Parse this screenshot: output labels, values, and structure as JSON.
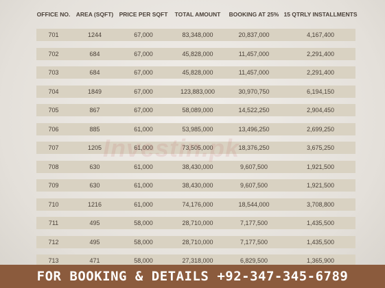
{
  "table": {
    "header": [
      "OFFICE NO.",
      "AREA (SQFT)",
      "PRICE PER SQFT",
      "TOTAL AMOUNT",
      "BOOKING AT 25%",
      "15 QTRLY INSTALLMENTS"
    ],
    "rows": [
      [
        "701",
        "1244",
        "67,000",
        "83,348,000",
        "20,837,000",
        "4,167,400"
      ],
      [
        "702",
        "684",
        "67,000",
        "45,828,000",
        "11,457,000",
        "2,291,400"
      ],
      [
        "703",
        "684",
        "67,000",
        "45,828,000",
        "11,457,000",
        "2,291,400"
      ],
      [
        "704",
        "1849",
        "67,000",
        "123,883,000",
        "30,970,750",
        "6,194,150"
      ],
      [
        "705",
        "867",
        "67,000",
        "58,089,000",
        "14,522,250",
        "2,904,450"
      ],
      [
        "706",
        "885",
        "61,000",
        "53,985,000",
        "13,496,250",
        "2,699,250"
      ],
      [
        "707",
        "1205",
        "61,000",
        "73,505,000",
        "18,376,250",
        "3,675,250"
      ],
      [
        "708",
        "630",
        "61,000",
        "38,430,000",
        "9,607,500",
        "1,921,500"
      ],
      [
        "709",
        "630",
        "61,000",
        "38,430,000",
        "9,607,500",
        "1,921,500"
      ],
      [
        "710",
        "1216",
        "61,000",
        "74,176,000",
        "18,544,000",
        "3,708,800"
      ],
      [
        "711",
        "495",
        "58,000",
        "28,710,000",
        "7,177,500",
        "1,435,500"
      ],
      [
        "712",
        "495",
        "58,000",
        "28,710,000",
        "7,177,500",
        "1,435,500"
      ],
      [
        "713",
        "471",
        "58,000",
        "27,318,000",
        "6,829,500",
        "1,365,900"
      ]
    ]
  },
  "watermark": "Investin.pk",
  "footer": "FOR BOOKING & DETAILS +92-347-345-6789"
}
